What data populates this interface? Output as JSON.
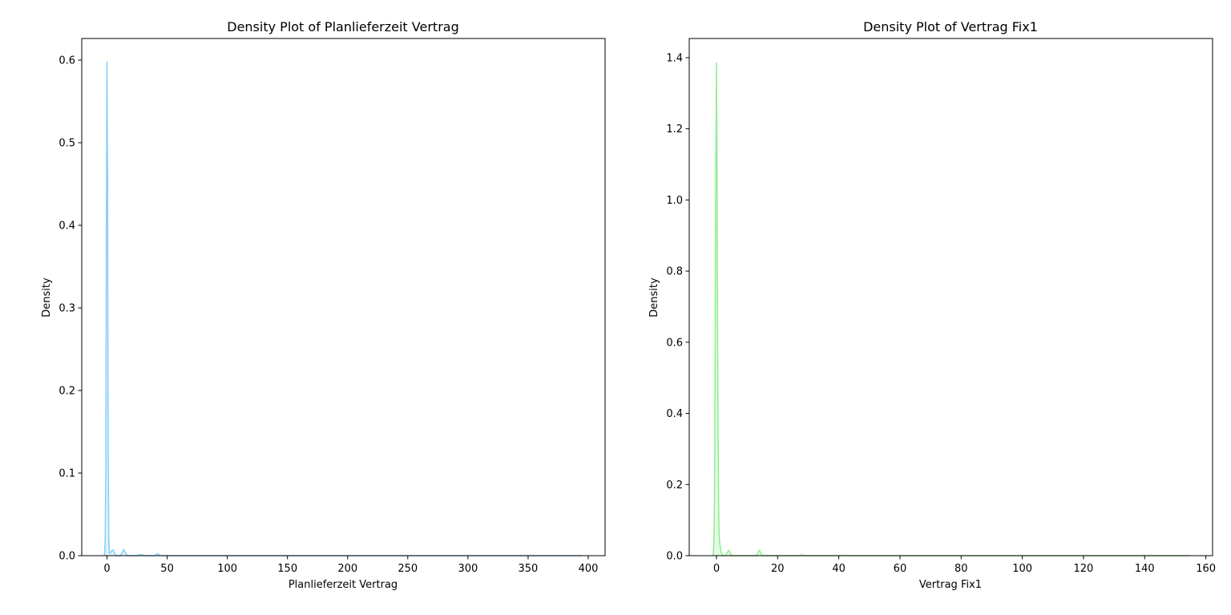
{
  "chart_data": [
    {
      "type": "area",
      "title": "Density Plot of Planlieferzeit Vertrag",
      "xlabel": "Planlieferzeit Vertrag",
      "ylabel": "Density",
      "xlim": [
        -21,
        414
      ],
      "ylim": [
        0,
        0.6262
      ],
      "xticks": [
        0,
        50,
        100,
        150,
        200,
        250,
        300,
        350,
        400
      ],
      "yticks": [
        0.0,
        0.1,
        0.2,
        0.3,
        0.4,
        0.5,
        0.6
      ],
      "xtick_labels": [
        "0",
        "50",
        "100",
        "150",
        "200",
        "250",
        "300",
        "350",
        "400"
      ],
      "ytick_labels": [
        "0.0",
        "0.1",
        "0.2",
        "0.3",
        "0.4",
        "0.5",
        "0.6"
      ],
      "grid": false,
      "colors": {
        "line": "#87cefa",
        "fill": "#87cefa",
        "fill_opacity": 0.25
      },
      "series": [
        {
          "x": [
            -2.5,
            -2,
            -1.5,
            -1,
            -0.5,
            0,
            0.5,
            1,
            1.5,
            2,
            2.5,
            3,
            4,
            5,
            6,
            7,
            8,
            9,
            11,
            12,
            13,
            14,
            15,
            16,
            18,
            25,
            27,
            28,
            29,
            31,
            40,
            41,
            42,
            43,
            44,
            50,
            100,
            200,
            300,
            395
          ],
          "y": [
            0,
            0.002,
            0.02,
            0.1,
            0.4,
            0.598,
            0.45,
            0.12,
            0.02,
            0.003,
            0.003,
            0.004,
            0.006,
            0.007,
            0.004,
            0.001,
            0,
            0,
            0,
            0.002,
            0.005,
            0.0075,
            0.004,
            0.001,
            0,
            0,
            0.001,
            0.0015,
            0.001,
            0,
            0,
            0.0015,
            0.0025,
            0.0015,
            0,
            0,
            0,
            0,
            0,
            0
          ]
        }
      ]
    },
    {
      "type": "area",
      "title": "Density Plot of Vertrag Fix1",
      "xlabel": "Vertrag Fix1",
      "ylabel": "Density",
      "xlim": [
        -8.9,
        162.2
      ],
      "ylim": [
        0,
        1.4539
      ],
      "xticks": [
        0,
        20,
        40,
        60,
        80,
        100,
        120,
        140,
        160
      ],
      "yticks": [
        0.0,
        0.2,
        0.4,
        0.6,
        0.8,
        1.0,
        1.2,
        1.4
      ],
      "xtick_labels": [
        "0",
        "20",
        "40",
        "60",
        "80",
        "100",
        "120",
        "140",
        "160"
      ],
      "ytick_labels": [
        "0.0",
        "0.2",
        "0.4",
        "0.6",
        "0.8",
        "1.0",
        "1.2",
        "1.4"
      ],
      "grid": false,
      "colors": {
        "line": "#90ee90",
        "fill": "#90ee90",
        "fill_opacity": 0.25
      },
      "series": [
        {
          "x": [
            -1.2,
            -1,
            -0.8,
            -0.6,
            -0.4,
            -0.2,
            0,
            0.2,
            0.4,
            0.6,
            0.8,
            1.0,
            1.5,
            2,
            3,
            3.5,
            4,
            4.5,
            5,
            6,
            13,
            13.5,
            14,
            14.5,
            15,
            16,
            27,
            28,
            29,
            41,
            42,
            43,
            50,
            80,
            120,
            155
          ],
          "y": [
            0,
            0.01,
            0.05,
            0.2,
            0.6,
            1.1,
            1.385,
            1.1,
            0.6,
            0.25,
            0.08,
            0.04,
            0.01,
            0,
            0,
            0.008,
            0.015,
            0.008,
            0,
            0,
            0,
            0.008,
            0.015,
            0.008,
            0,
            0,
            0,
            0.002,
            0,
            0,
            0.001,
            0,
            0,
            0,
            0,
            0
          ]
        }
      ]
    }
  ]
}
